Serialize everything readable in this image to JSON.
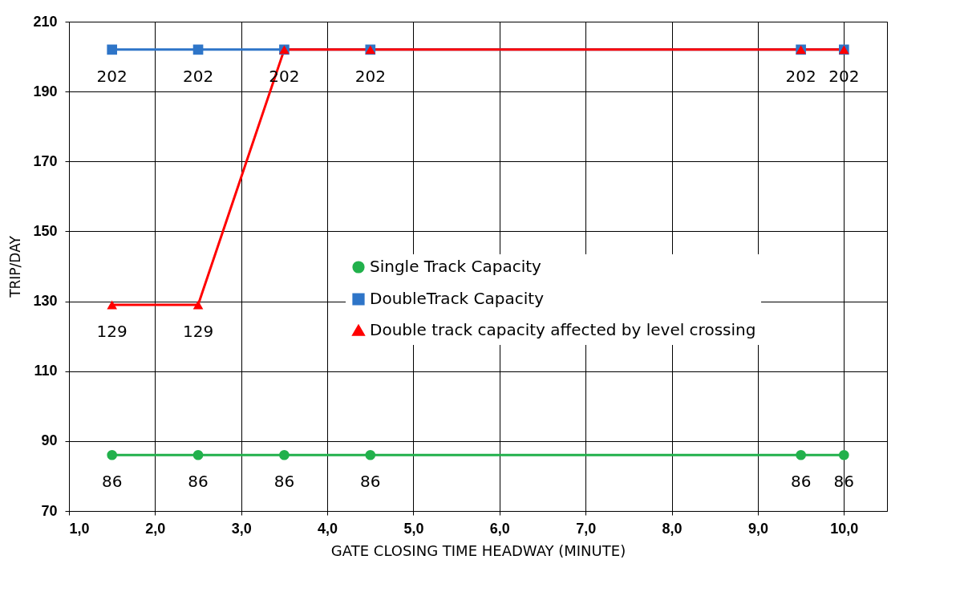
{
  "chart_data": {
    "type": "line",
    "xlabel": "GATE CLOSING TIME HEADWAY (MINUTE)",
    "ylabel": "TRIP/DAY",
    "x": [
      1.5,
      2.5,
      3.5,
      4.5,
      9.5,
      10
    ],
    "xlim": [
      1,
      10.5
    ],
    "xticks": [
      {
        "value": 1,
        "label": "1,0"
      },
      {
        "value": 2,
        "label": "2,0"
      },
      {
        "value": 3,
        "label": "3,0"
      },
      {
        "value": 4,
        "label": "4,0"
      },
      {
        "value": 5,
        "label": "5,0"
      },
      {
        "value": 6,
        "label": "6,0"
      },
      {
        "value": 7,
        "label": "7,0"
      },
      {
        "value": 8,
        "label": "8,0"
      },
      {
        "value": 9,
        "label": "9,0"
      },
      {
        "value": 10,
        "label": "10,0"
      }
    ],
    "ylim": [
      70,
      210
    ],
    "yticks": [
      70,
      90,
      110,
      130,
      150,
      170,
      190,
      210
    ],
    "grid": true,
    "legend": "right",
    "series": [
      {
        "name": "Single Track Capacity",
        "color": "#22b14c",
        "marker": "circle",
        "values": [
          86,
          86,
          86,
          86,
          86,
          86
        ],
        "value_labels": [
          "86",
          "86",
          "86",
          "86",
          "86",
          "86"
        ]
      },
      {
        "name": "DoubleTrack Capacity",
        "color": "#2e75c8",
        "marker": "square",
        "values": [
          202,
          202,
          202,
          202,
          202,
          202
        ],
        "value_labels": [
          "202",
          "202",
          "202",
          "202",
          "202",
          "202"
        ]
      },
      {
        "name": "Double track capacity affected by level crossing",
        "color": "#ff0000",
        "marker": "triangle",
        "values": [
          129,
          129,
          202,
          202,
          202,
          202
        ],
        "value_labels": [
          "129",
          "129",
          null,
          null,
          null,
          null
        ]
      }
    ]
  }
}
